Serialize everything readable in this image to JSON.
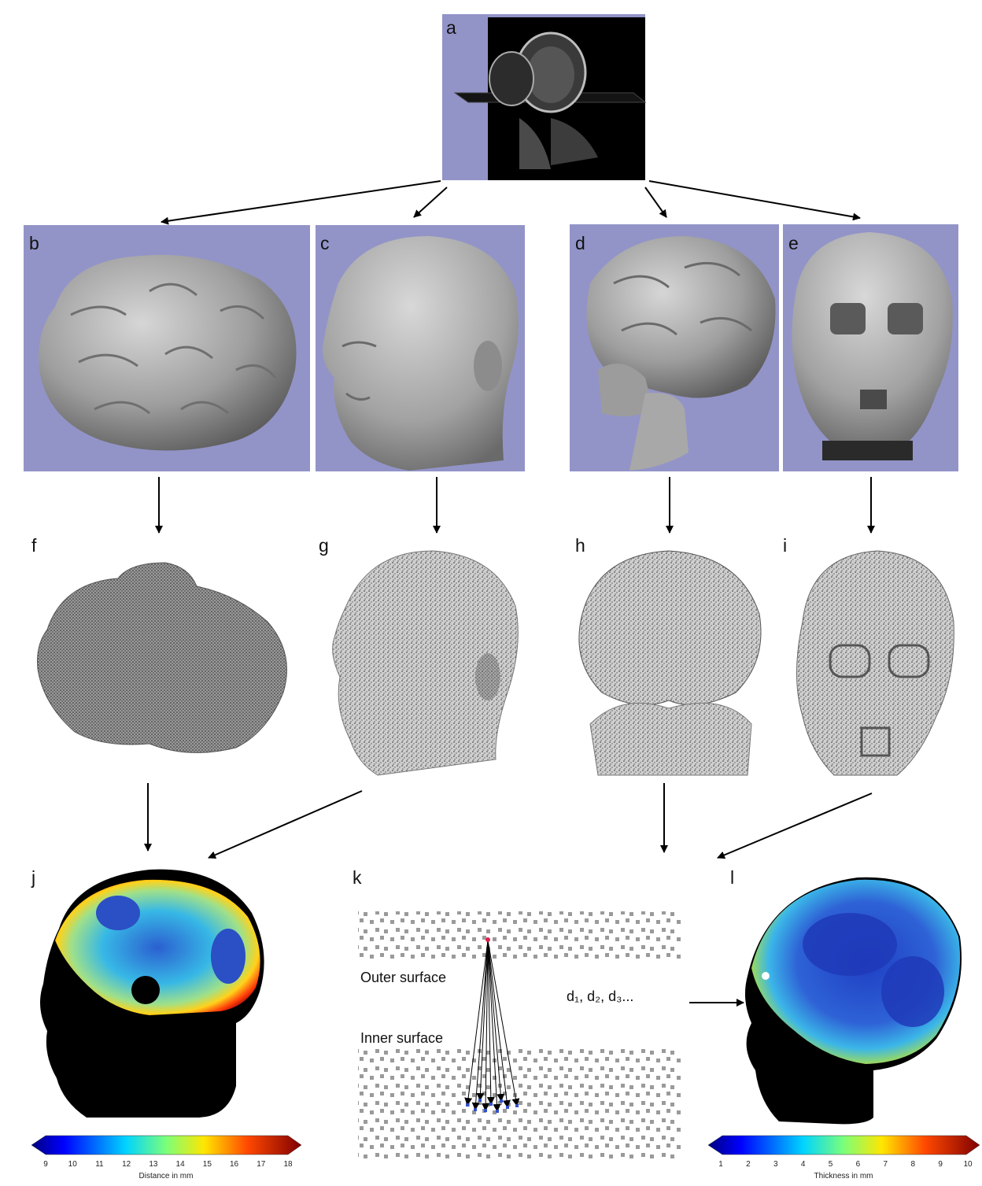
{
  "panels": {
    "a": "a",
    "b": "b",
    "c": "c",
    "d": "d",
    "e": "e",
    "f": "f",
    "g": "g",
    "h": "h",
    "i": "i",
    "j": "j",
    "k": "k",
    "l": "l"
  },
  "panel_k": {
    "outer_label": "Outer surface",
    "inner_label": "Inner surface",
    "distances_label": "d₁, d₂, d₃..."
  },
  "colorbar_j": {
    "title": "Distance in mm",
    "ticks": [
      "9",
      "10",
      "11",
      "12",
      "13",
      "14",
      "15",
      "16",
      "17",
      "18"
    ],
    "colormap": "jet"
  },
  "colorbar_l": {
    "title": "Thickness in mm",
    "ticks": [
      "1",
      "2",
      "3",
      "4",
      "5",
      "6",
      "7",
      "8",
      "9",
      "10"
    ],
    "colormap": "jet"
  },
  "colors": {
    "panel_background": "#9294c8",
    "surface_gray": "#a8a8a8",
    "arrow": "#000000"
  }
}
